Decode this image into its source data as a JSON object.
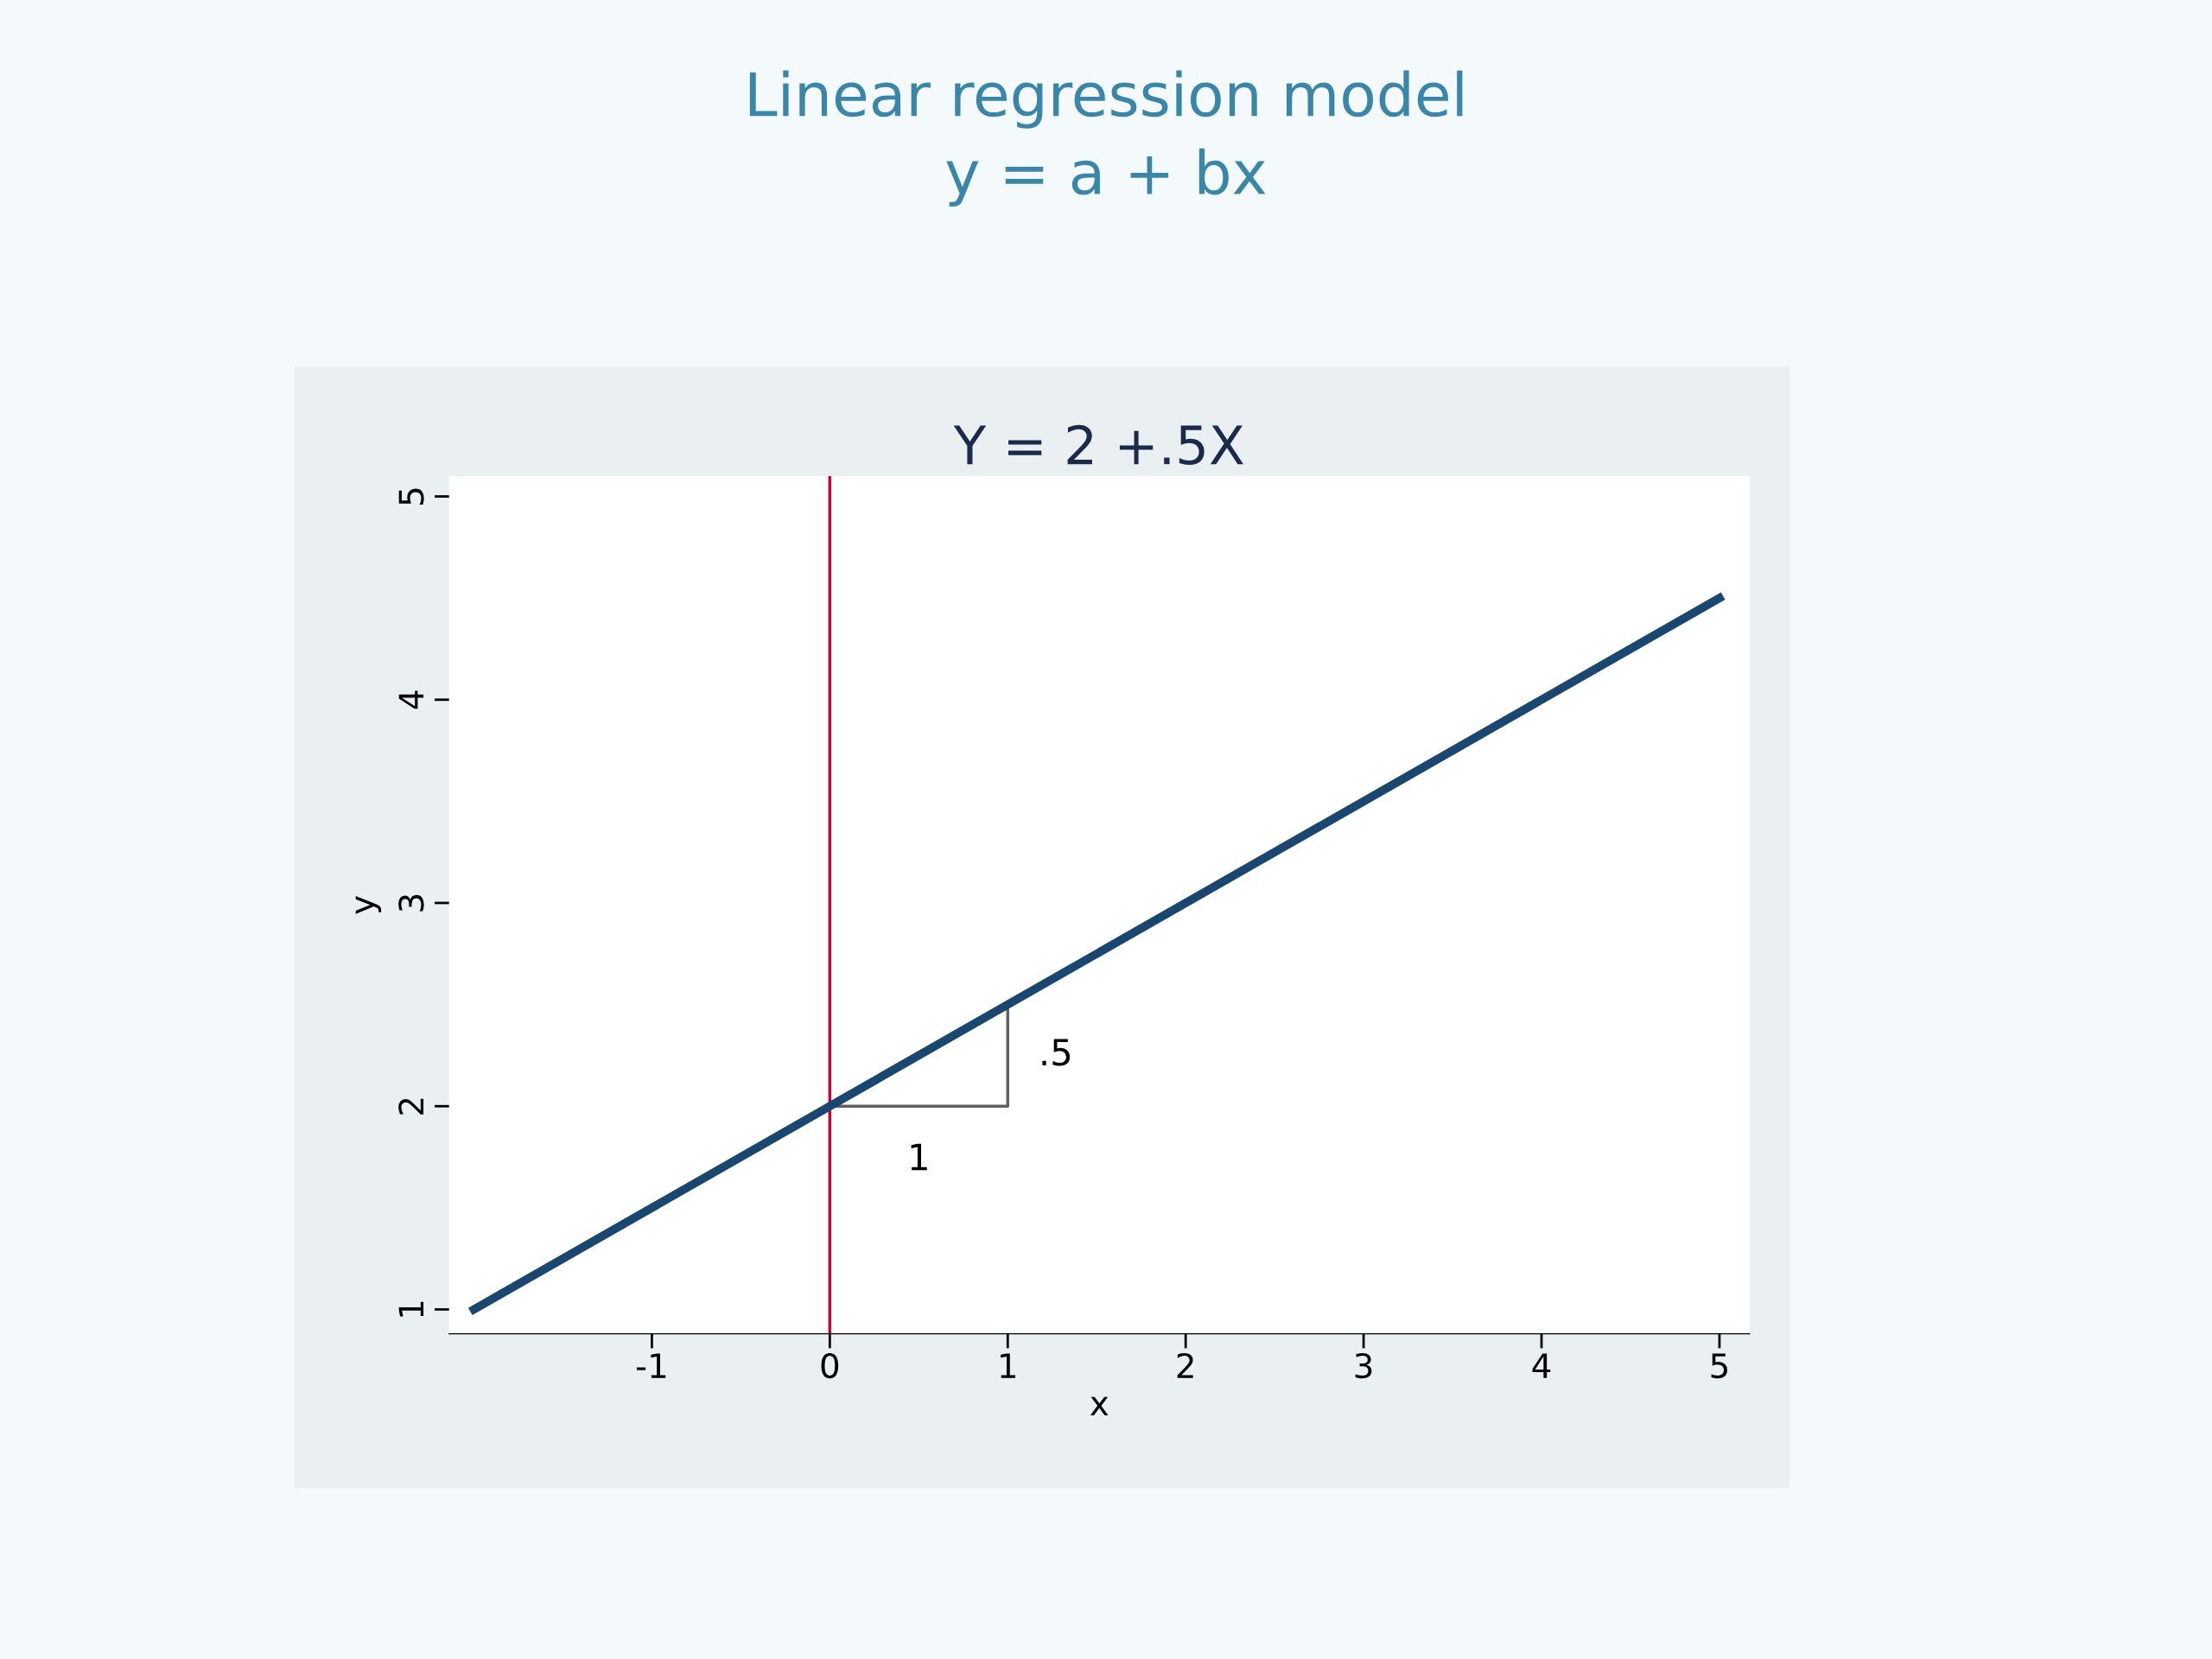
{
  "chart_data": {
    "type": "line",
    "title": "Linear regression model",
    "subtitle": "y = a + bx",
    "xlabel": "x",
    "ylabel": "y",
    "series": [
      {
        "x": [
          -2,
          5
        ],
        "values": [
          1,
          4.5
        ],
        "color": "#1a476f"
      },
      {
        "x": [
          0,
          1,
          1
        ],
        "values": [
          2,
          2,
          2.5
        ],
        "color": "#606060"
      }
    ],
    "xlim": [
      -2.14,
      5.17
    ],
    "xticks": [
      -1,
      0,
      1,
      2,
      3,
      4,
      5
    ],
    "ylim": [
      0.88,
      5.1
    ],
    "yticks": [
      1,
      2,
      3,
      4,
      5
    ],
    "ref_lines": [
      {
        "axis": "x",
        "value": 0,
        "color": "#c10534"
      }
    ],
    "annotations": [
      "Y = 2 +.5X",
      "1",
      ".5"
    ],
    "grid": false,
    "marker": "none",
    "line_style": "solid"
  }
}
